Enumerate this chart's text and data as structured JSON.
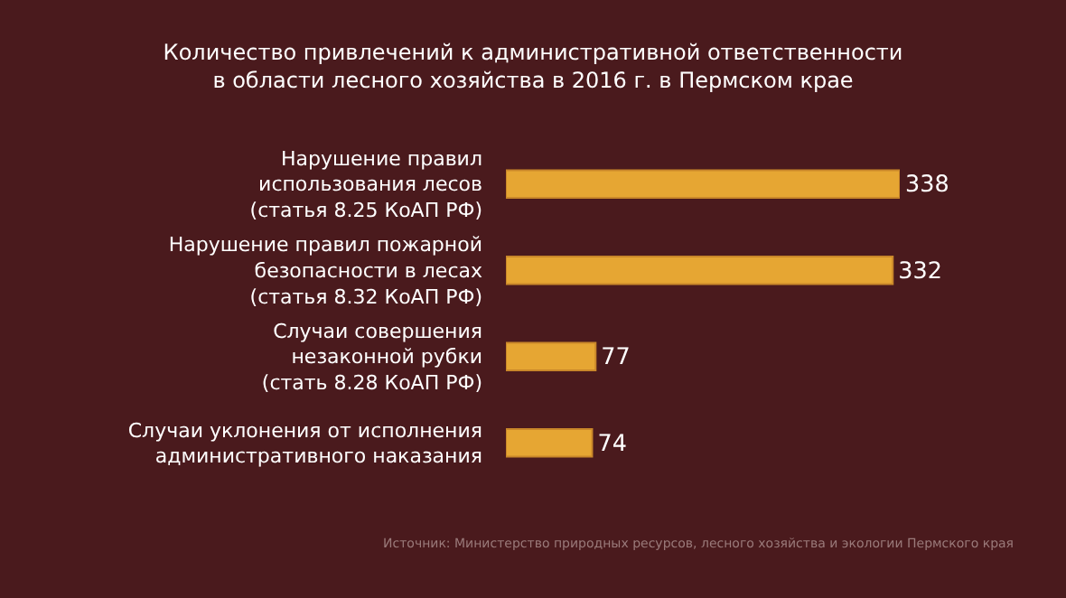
{
  "chart_data": {
    "type": "bar",
    "orientation": "horizontal",
    "title": "Количество привлечений к административной ответственности\nв области лесного хозяйства в 2016 г. в Пермском крае",
    "categories": [
      "Нарушение правил\nиспользования лесов\n(статья 8.25 КоАП РФ)",
      "Нарушение правил пожарной\nбезопасности в лесах\n(статья 8.32 КоАП РФ)",
      "Случаи совершения\nнезаконной рубки\n(стать 8.28 КоАП РФ)",
      "Случаи уклонения от исполнения\nадминистративного наказания"
    ],
    "values": [
      338,
      332,
      77,
      74
    ],
    "color": "#e6a633",
    "data_labels": true,
    "annotations": [
      "Источник: Министерство природных ресурсов, лесного хозяйства и экологии Пермского края"
    ]
  }
}
